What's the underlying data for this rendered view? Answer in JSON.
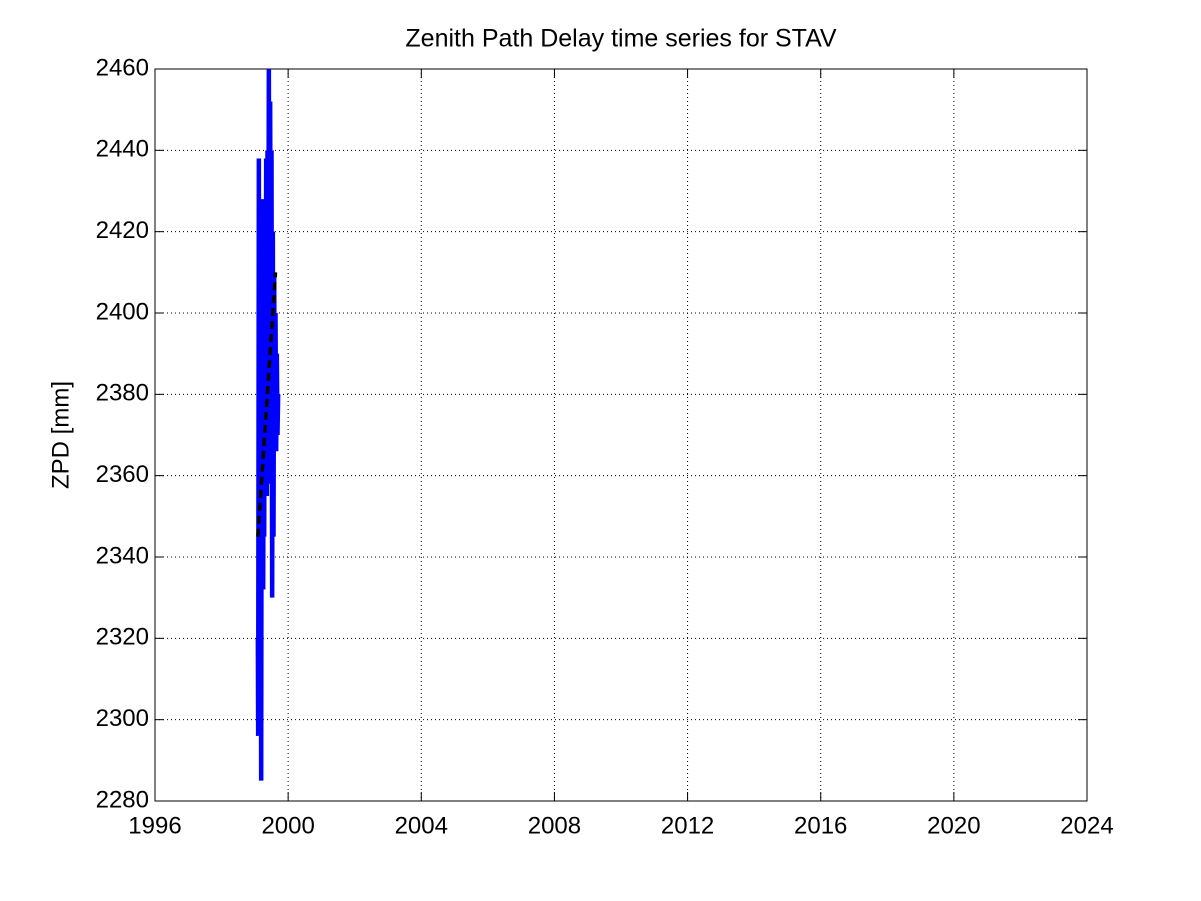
{
  "chart_data": {
    "type": "line",
    "title": "Zenith Path Delay time series for STAV",
    "y_label": "ZPD [mm]",
    "x": [
      1999.09,
      1999.1,
      1999.12,
      1999.13,
      1999.15,
      1999.16,
      1999.18,
      1999.19,
      1999.21,
      1999.22,
      1999.24,
      1999.25,
      1999.27,
      1999.28,
      1999.3,
      1999.32,
      1999.34,
      1999.36,
      1999.38,
      1999.4,
      1999.42,
      1999.44,
      1999.46,
      1999.48,
      1999.5,
      1999.52,
      1999.54,
      1999.56,
      1999.58,
      1999.6,
      1999.62,
      1999.64,
      1999.66,
      1999.68,
      1999.7
    ],
    "series": [
      {
        "color": "#0000ff",
        "linestyle": "solid",
        "values": [
          2320,
          2296,
          2438,
          2340,
          2300,
          2428,
          2330,
          2285,
          2420,
          2350,
          2428,
          2332,
          2400,
          2345,
          2415,
          2360,
          2438,
          2355,
          2440,
          2370,
          2460,
          2380,
          2452,
          2358,
          2440,
          2330,
          2420,
          2345,
          2410,
          2370,
          2400,
          2366,
          2390,
          2370,
          2380
        ]
      },
      {
        "color": "#000000",
        "linestyle": "dashed",
        "x": [
          1999.09,
          1999.62
        ],
        "values": [
          2345,
          2410
        ]
      }
    ],
    "xlim": [
      1996,
      2024
    ],
    "xticks": [
      1996,
      2000,
      2004,
      2008,
      2012,
      2016,
      2020,
      2024
    ],
    "ylim": [
      2280,
      2460
    ],
    "yticks": [
      2280,
      2300,
      2320,
      2340,
      2360,
      2380,
      2400,
      2420,
      2440,
      2460
    ],
    "grid": true
  }
}
